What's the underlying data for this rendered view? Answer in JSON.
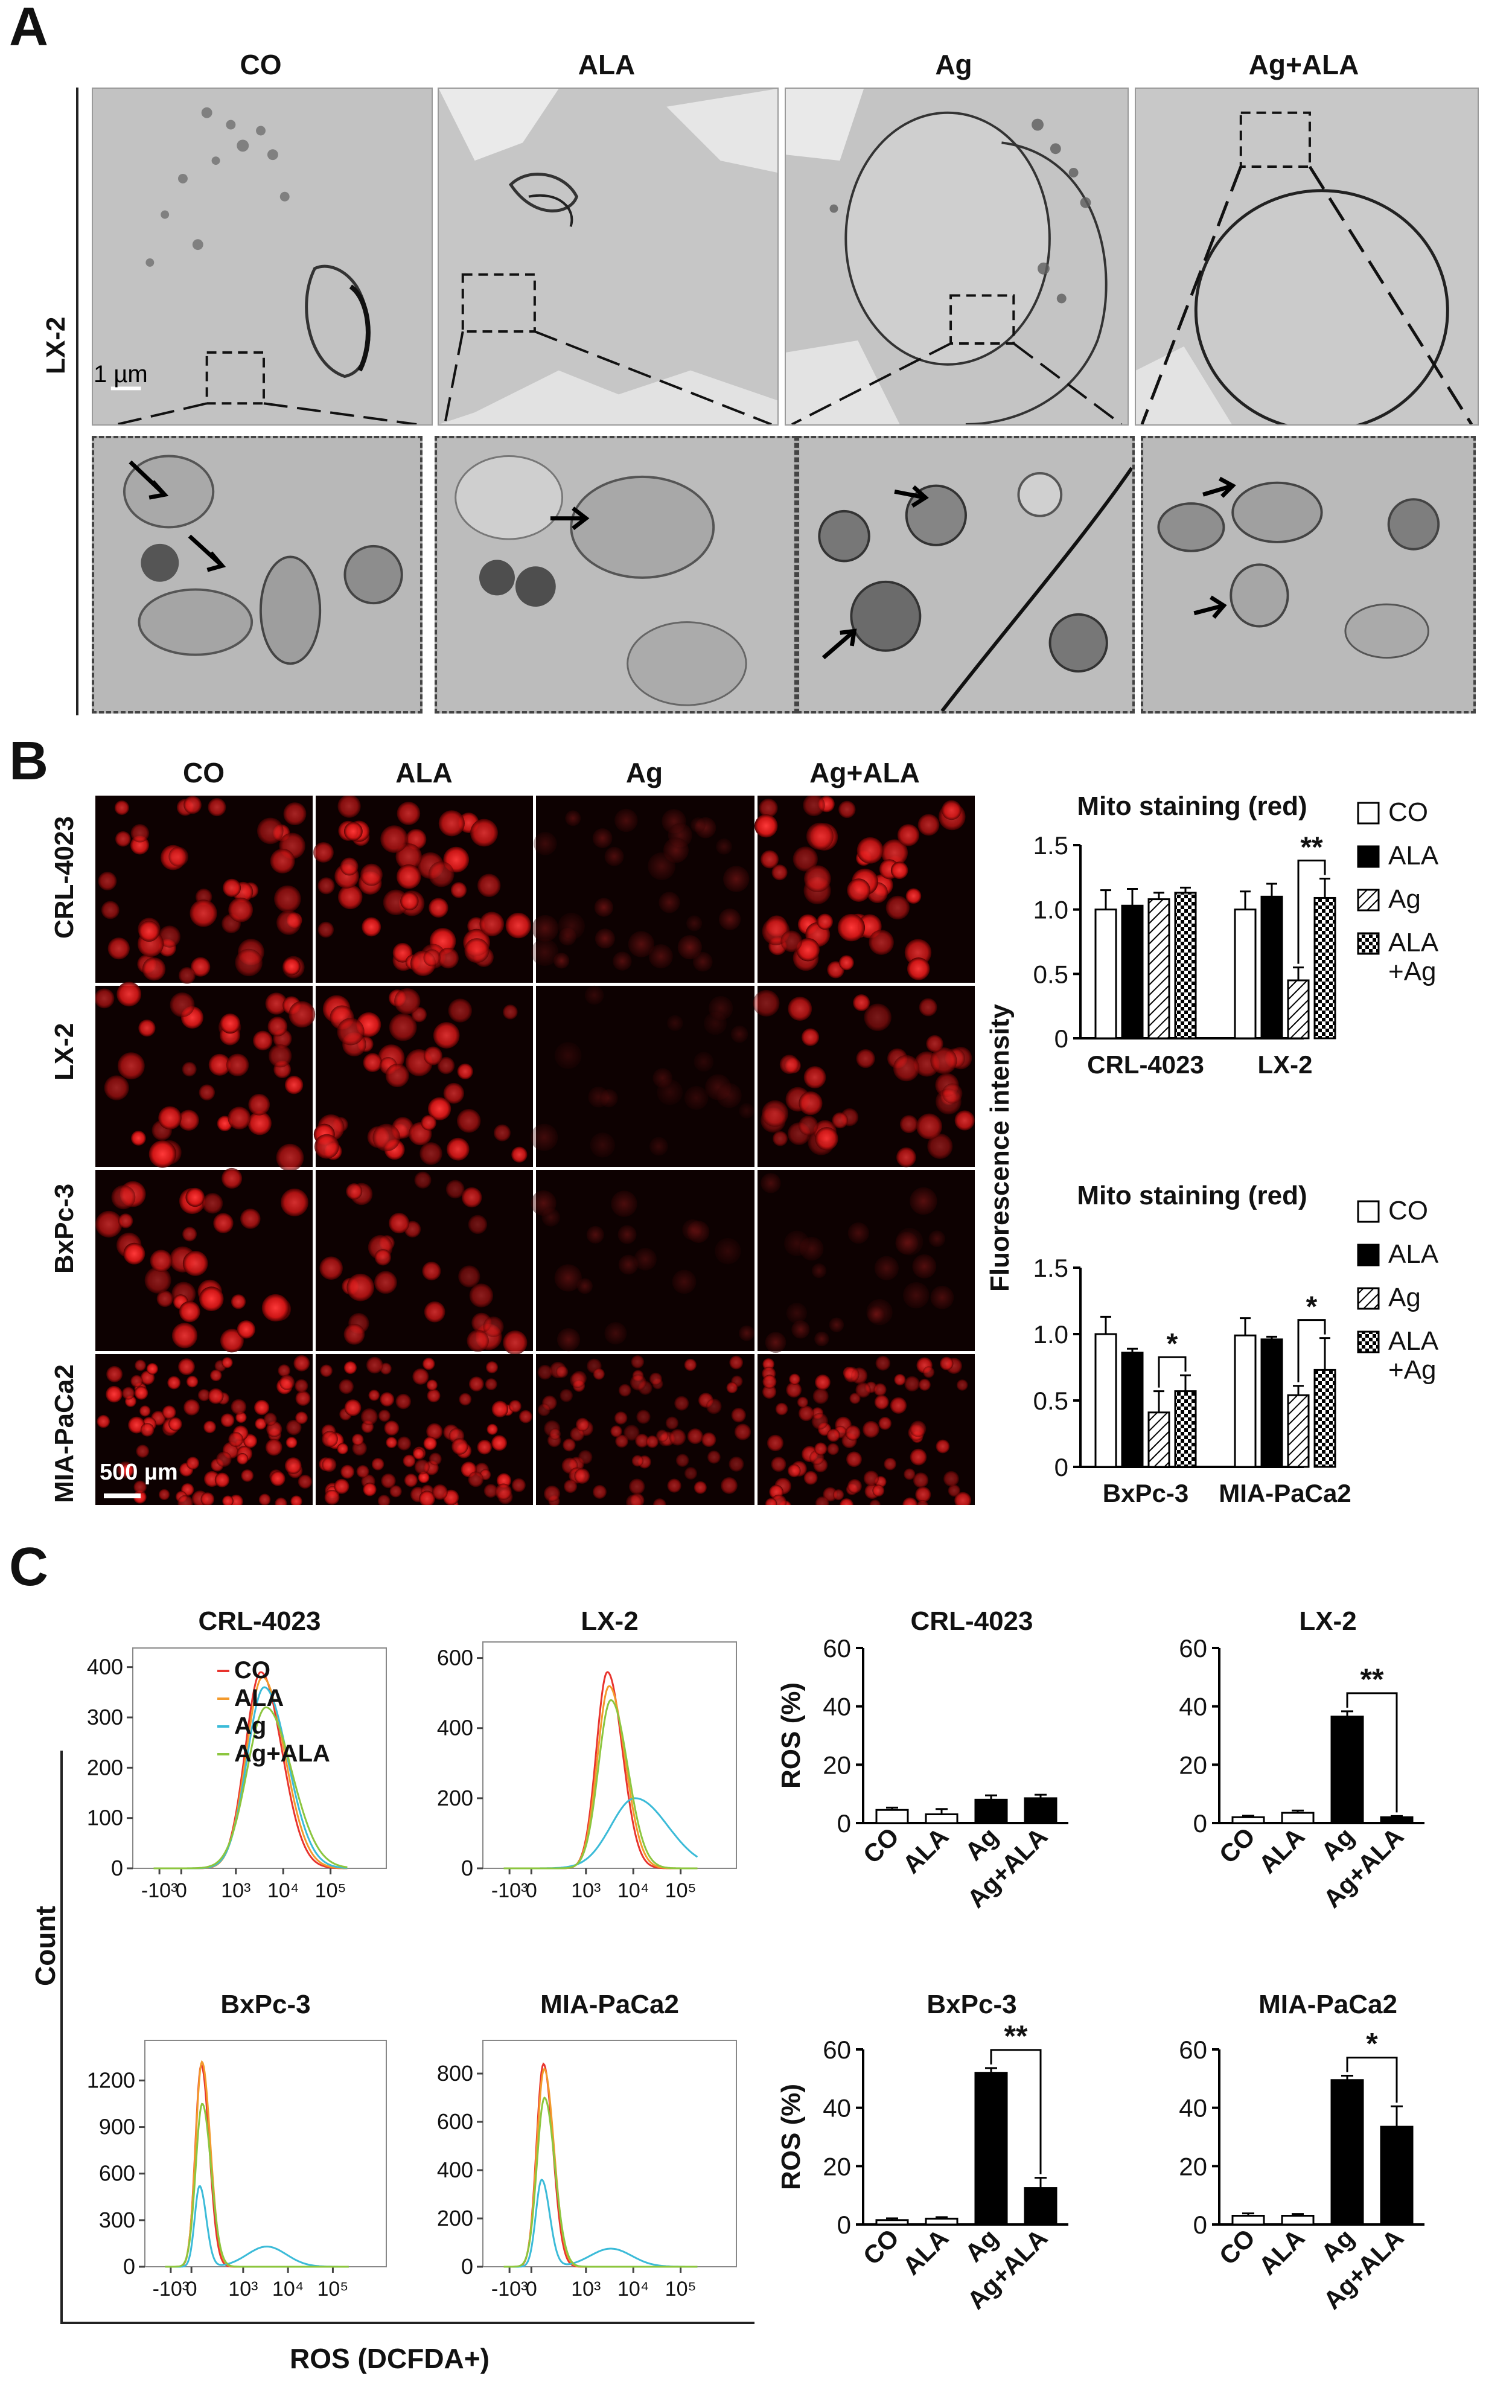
{
  "panel_a": {
    "label": "A",
    "columns": [
      "CO",
      "ALA",
      "Ag",
      "Ag+ALA"
    ],
    "row_label": "LX-2",
    "scale_bar": "1 µm"
  },
  "panel_b": {
    "label": "B",
    "columns": [
      "CO",
      "ALA",
      "Ag",
      "Ag+ALA"
    ],
    "rows": [
      "CRL-4023",
      "LX-2",
      "BxPc-3",
      "MIA-PaCa2"
    ],
    "scale_bar": "500 µm",
    "shared_ylabel": "Fluorescence intensity"
  },
  "panel_c": {
    "label": "C",
    "flow_xlabel": "ROS (DCFDA+)",
    "flow_ylabel": "Count",
    "flow_xticks": [
      "-10³",
      "0",
      "10³",
      "10⁴",
      "10⁵"
    ]
  },
  "colors": {
    "CO": "#e8342e",
    "ALA": "#f39a2c",
    "Ag": "#3bbbd8",
    "Ag+ALA": "#8cc63f"
  },
  "chart_data": [
    {
      "id": "b-top",
      "type": "bar",
      "title": "Mito staining (red)",
      "ylabel": "",
      "categories": [
        "CRL-4023",
        "LX-2"
      ],
      "series": [
        {
          "name": "CO",
          "pattern": "open",
          "values": [
            1.0,
            1.0
          ],
          "errors": [
            0.15,
            0.14
          ]
        },
        {
          "name": "ALA",
          "pattern": "solid",
          "values": [
            1.03,
            1.1
          ],
          "errors": [
            0.13,
            0.1
          ]
        },
        {
          "name": "Ag",
          "pattern": "hatch",
          "values": [
            1.08,
            0.45
          ],
          "errors": [
            0.05,
            0.1
          ]
        },
        {
          "name": "ALA\n+Ag",
          "pattern": "check",
          "values": [
            1.13,
            1.09
          ],
          "errors": [
            0.04,
            0.15
          ]
        }
      ],
      "ylim": [
        0,
        1.5
      ],
      "yticks": [
        "0",
        "0.5",
        "1.0",
        "1.5"
      ],
      "significance": [
        {
          "group": 1,
          "from": 2,
          "to": 3,
          "label": "**"
        }
      ],
      "legend": "right"
    },
    {
      "id": "b-bottom",
      "type": "bar",
      "title": "Mito staining (red)",
      "ylabel": "",
      "categories": [
        "BxPc-3",
        "MIA-PaCa2"
      ],
      "series": [
        {
          "name": "CO",
          "pattern": "open",
          "values": [
            1.0,
            0.99
          ],
          "errors": [
            0.13,
            0.13
          ]
        },
        {
          "name": "ALA",
          "pattern": "solid",
          "values": [
            0.86,
            0.96
          ],
          "errors": [
            0.03,
            0.02
          ]
        },
        {
          "name": "Ag",
          "pattern": "hatch",
          "values": [
            0.41,
            0.54
          ],
          "errors": [
            0.16,
            0.07
          ]
        },
        {
          "name": "ALA\n+Ag",
          "pattern": "check",
          "values": [
            0.57,
            0.73
          ],
          "errors": [
            0.12,
            0.24
          ]
        }
      ],
      "ylim": [
        0,
        1.5
      ],
      "yticks": [
        "0",
        "0.5",
        "1.0",
        "1.5"
      ],
      "significance": [
        {
          "group": 0,
          "from": 2,
          "to": 3,
          "label": "*"
        },
        {
          "group": 1,
          "from": 2,
          "to": 3,
          "label": "*"
        }
      ],
      "legend": "right"
    },
    {
      "id": "c-hist-crl",
      "type": "line",
      "title": "CRL-4023",
      "yticks": [
        "0",
        "100",
        "200",
        "300",
        "400"
      ],
      "ylim": [
        0,
        420
      ],
      "legend": [
        "CO",
        "ALA",
        "Ag",
        "Ag+ALA"
      ],
      "series": [
        {
          "name": "CO",
          "peak": 390,
          "mode": 2.3,
          "width": 0.45,
          "shoulder": 0
        },
        {
          "name": "ALA",
          "peak": 380,
          "mode": 2.35,
          "width": 0.47,
          "shoulder": 0
        },
        {
          "name": "Ag",
          "peak": 360,
          "mode": 2.4,
          "width": 0.5,
          "shoulder": 0
        },
        {
          "name": "Ag+ALA",
          "peak": 320,
          "mode": 2.45,
          "width": 0.55,
          "shoulder": 0
        }
      ]
    },
    {
      "id": "c-hist-lx2",
      "type": "line",
      "title": "LX-2",
      "yticks": [
        "0",
        "200",
        "400",
        "600"
      ],
      "ylim": [
        0,
        620
      ],
      "series": [
        {
          "name": "CO",
          "peak": 560,
          "mode": 2.2,
          "width": 0.32,
          "shoulder": 0
        },
        {
          "name": "ALA",
          "peak": 520,
          "mode": 2.25,
          "width": 0.34,
          "shoulder": 0
        },
        {
          "name": "Ag",
          "peak": 200,
          "mode": 3.0,
          "width": 0.7,
          "shoulder": 0
        },
        {
          "name": "Ag+ALA",
          "peak": 480,
          "mode": 2.3,
          "width": 0.36,
          "shoulder": 0
        }
      ]
    },
    {
      "id": "c-hist-bxpc3",
      "type": "line",
      "title": "BxPc-3",
      "yticks": [
        "0",
        "300",
        "600",
        "900",
        "1200"
      ],
      "ylim": [
        0,
        1400
      ],
      "series": [
        {
          "name": "CO",
          "peak": 1300,
          "mode": 0.3,
          "width": 0.18,
          "shoulder": 0
        },
        {
          "name": "ALA",
          "peak": 1320,
          "mode": 0.32,
          "width": 0.19,
          "shoulder": 0
        },
        {
          "name": "Ag",
          "peak": 520,
          "mode": 0.25,
          "width": 0.15,
          "shoulder": 130
        },
        {
          "name": "Ag+ALA",
          "peak": 1050,
          "mode": 0.33,
          "width": 0.2,
          "shoulder": 0
        }
      ]
    },
    {
      "id": "c-hist-mia",
      "type": "line",
      "title": "MIA-PaCa2",
      "yticks": [
        "0",
        "200",
        "400",
        "600",
        "800"
      ],
      "ylim": [
        0,
        900
      ],
      "series": [
        {
          "name": "CO",
          "peak": 840,
          "mode": 0.35,
          "width": 0.2,
          "shoulder": 0
        },
        {
          "name": "ALA",
          "peak": 820,
          "mode": 0.37,
          "width": 0.21,
          "shoulder": 0
        },
        {
          "name": "Ag",
          "peak": 360,
          "mode": 0.3,
          "width": 0.17,
          "shoulder": 75
        },
        {
          "name": "Ag+ALA",
          "peak": 700,
          "mode": 0.38,
          "width": 0.22,
          "shoulder": 0
        }
      ]
    },
    {
      "id": "c-bar-crl",
      "type": "bar",
      "title": "CRL-4023",
      "ylabel": "ROS (%)",
      "categories": [
        "CO",
        "ALA",
        "Ag",
        "Ag+ALA"
      ],
      "values": [
        4.5,
        3.0,
        8.0,
        8.5
      ],
      "errors": [
        0.8,
        1.8,
        1.5,
        1.2
      ],
      "fills": [
        "open",
        "open",
        "solid",
        "solid"
      ],
      "ylim": [
        0,
        60
      ],
      "yticks": [
        "0",
        "20",
        "40",
        "60"
      ],
      "significance": []
    },
    {
      "id": "c-bar-lx2",
      "type": "bar",
      "title": "LX-2",
      "ylabel": "",
      "categories": [
        "CO",
        "ALA",
        "Ag",
        "Ag+ALA"
      ],
      "values": [
        2.0,
        3.5,
        36.5,
        2.0
      ],
      "errors": [
        0.5,
        0.8,
        1.8,
        0.4
      ],
      "fills": [
        "open",
        "open",
        "solid",
        "solid"
      ],
      "ylim": [
        0,
        60
      ],
      "yticks": [
        "0",
        "20",
        "40",
        "60"
      ],
      "significance": [
        {
          "from": 2,
          "to": 3,
          "label": "**"
        }
      ]
    },
    {
      "id": "c-bar-bxpc3",
      "type": "bar",
      "title": "BxPc-3",
      "ylabel": "ROS (%)",
      "categories": [
        "CO",
        "ALA",
        "Ag",
        "Ag+ALA"
      ],
      "values": [
        1.5,
        2.0,
        52.0,
        12.5
      ],
      "errors": [
        0.6,
        0.5,
        1.6,
        3.5
      ],
      "fills": [
        "open",
        "open",
        "solid",
        "solid"
      ],
      "ylim": [
        0,
        60
      ],
      "yticks": [
        "0",
        "20",
        "40",
        "60"
      ],
      "significance": [
        {
          "from": 2,
          "to": 3,
          "label": "**"
        }
      ]
    },
    {
      "id": "c-bar-mia",
      "type": "bar",
      "title": "MIA-PaCa2",
      "ylabel": "",
      "categories": [
        "CO",
        "ALA",
        "Ag",
        "Ag+ALA"
      ],
      "values": [
        3.0,
        3.0,
        49.5,
        33.5
      ],
      "errors": [
        0.8,
        0.6,
        1.5,
        7.0
      ],
      "fills": [
        "open",
        "open",
        "solid",
        "solid"
      ],
      "ylim": [
        0,
        60
      ],
      "yticks": [
        "0",
        "20",
        "40",
        "60"
      ],
      "significance": [
        {
          "from": 2,
          "to": 3,
          "label": "*"
        }
      ]
    }
  ]
}
